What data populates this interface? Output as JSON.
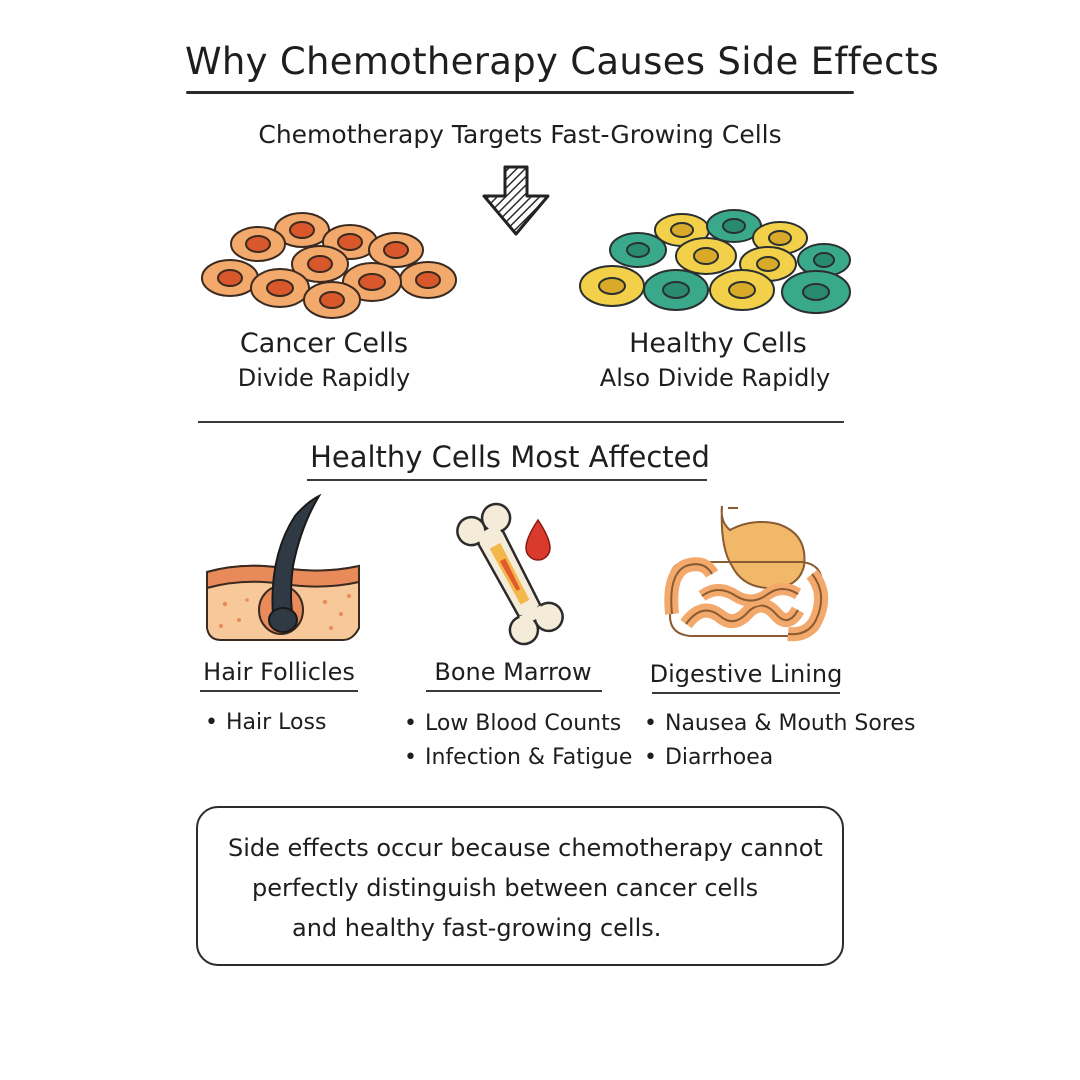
{
  "title": "Why Chemotherapy Causes Side Effects",
  "subtitle": "Chemotherapy Targets Fast-Growing Cells",
  "cells": {
    "cancer": {
      "label": "Cancer Cells",
      "sub": "Divide Rapidly"
    },
    "healthy": {
      "label": "Healthy Cells",
      "sub": "Also Divide Rapidly"
    }
  },
  "section_title": "Healthy Cells Most Affected",
  "tissues": [
    {
      "label": "Hair Follicles",
      "icon": "hair-follicle-icon",
      "effects": [
        "Hair Loss"
      ]
    },
    {
      "label": "Bone Marrow",
      "icon": "bone-marrow-icon",
      "effects": [
        "Low Blood Counts",
        "Infection & Fatigue"
      ]
    },
    {
      "label": "Digestive Lining",
      "icon": "digestive-tract-icon",
      "effects": [
        "Nausea & Mouth Sores",
        "Diarrhoea"
      ]
    }
  ],
  "note": {
    "lines": [
      "Side effects occur because chemotherapy cannot",
      "perfectly distinguish between cancer cells",
      "and healthy fast-growing cells."
    ]
  },
  "colors": {
    "cancer_cell": "#f2a96b",
    "cancer_nucleus": "#d9582b",
    "healthy_yellow": "#f2d04a",
    "healthy_green": "#3aa88a",
    "blood": "#d93a2b",
    "skin": "#f7c99a"
  }
}
